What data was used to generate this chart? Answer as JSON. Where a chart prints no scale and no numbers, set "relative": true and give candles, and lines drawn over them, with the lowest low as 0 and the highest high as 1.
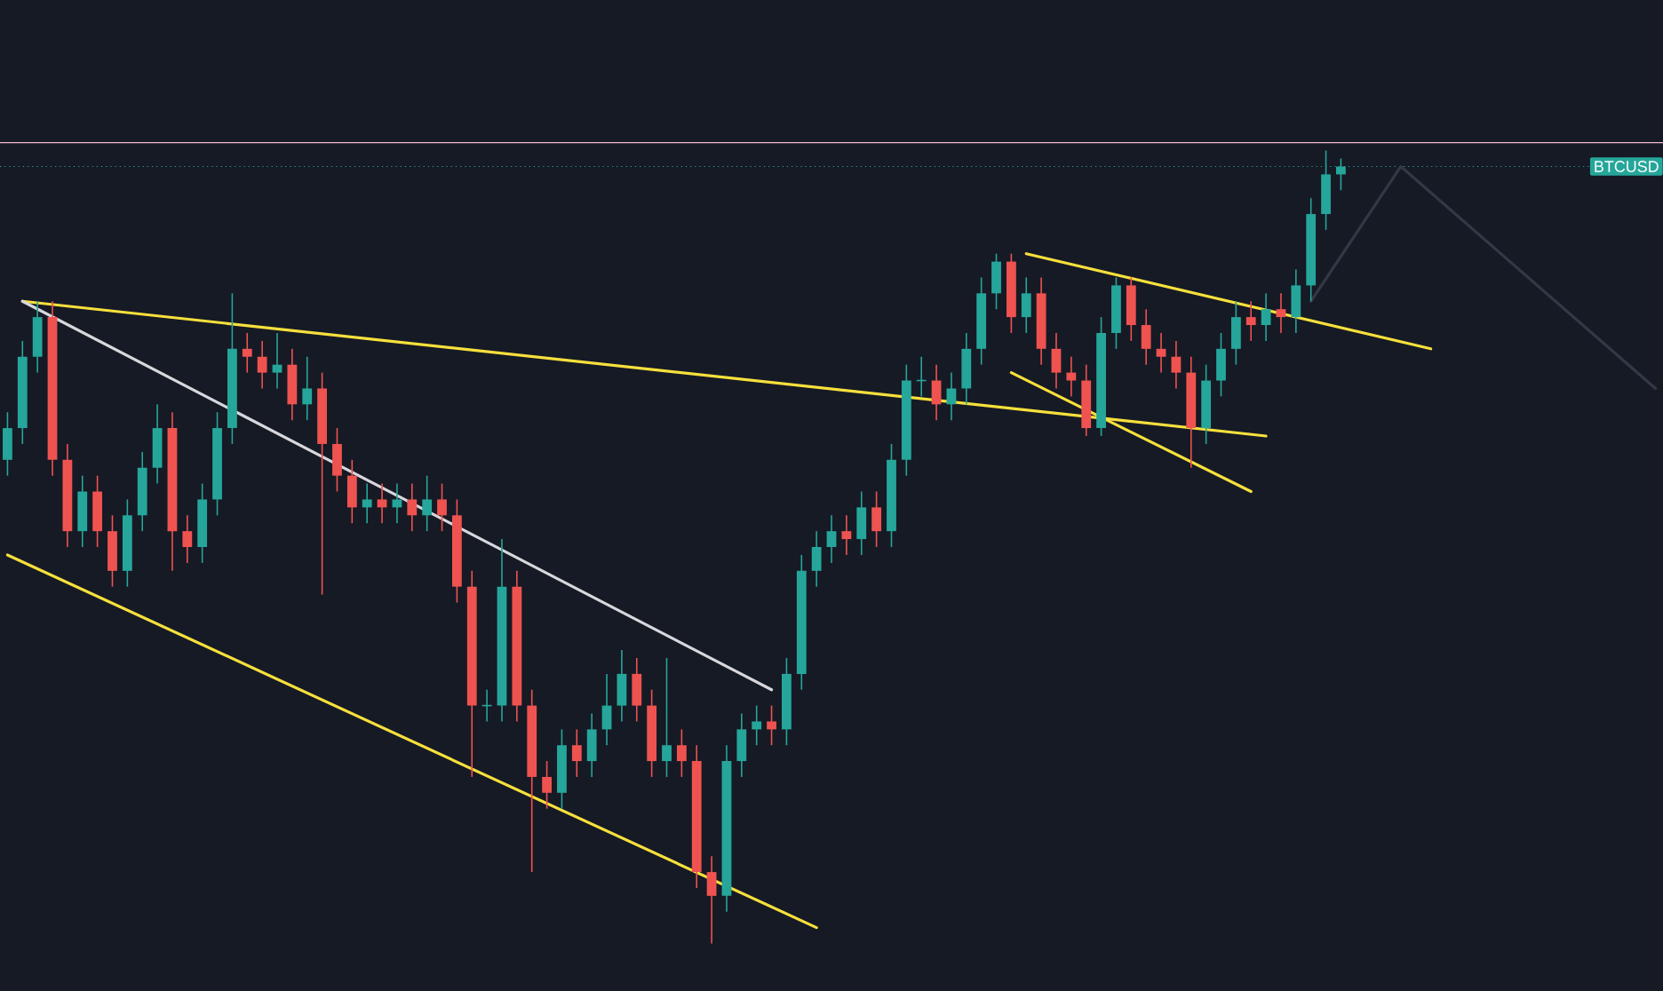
{
  "chart_data": {
    "type": "candlestick",
    "relative": true,
    "tick_labels": false,
    "categories": [
      null,
      null,
      null,
      null,
      null,
      null,
      null,
      null,
      null,
      null,
      null,
      null,
      null,
      null,
      null,
      null,
      null,
      null,
      null,
      null,
      null,
      null,
      null,
      null,
      null,
      null,
      null,
      null,
      null,
      null,
      null,
      null,
      null,
      null,
      null,
      null,
      null,
      null,
      null,
      null,
      null,
      null,
      null,
      null,
      null,
      null,
      null,
      null,
      null,
      null,
      null,
      null,
      null,
      null,
      null,
      null,
      null,
      null,
      null,
      null,
      null,
      null,
      null,
      null,
      null,
      null,
      null,
      null,
      null,
      null,
      null,
      null,
      null,
      null,
      null,
      null,
      null,
      null,
      null,
      null,
      null,
      null,
      null,
      null,
      null,
      null,
      null,
      null,
      null,
      null,
      null,
      null,
      null,
      null,
      null,
      null,
      null,
      null,
      null,
      null,
      null,
      null,
      null,
      null,
      null,
      null,
      null,
      null,
      null,
      null,
      null
    ],
    "ohlc": [
      [
        0.61,
        0.67,
        0.59,
        0.65
      ],
      [
        0.65,
        0.76,
        0.63,
        0.74
      ],
      [
        0.74,
        0.81,
        0.72,
        0.79
      ],
      [
        0.79,
        0.81,
        0.59,
        0.61
      ],
      [
        0.61,
        0.63,
        0.5,
        0.52
      ],
      [
        0.52,
        0.59,
        0.5,
        0.57
      ],
      [
        0.57,
        0.59,
        0.5,
        0.52
      ],
      [
        0.52,
        0.54,
        0.45,
        0.47
      ],
      [
        0.47,
        0.56,
        0.45,
        0.54
      ],
      [
        0.54,
        0.62,
        0.52,
        0.6
      ],
      [
        0.6,
        0.68,
        0.58,
        0.65
      ],
      [
        0.65,
        0.67,
        0.47,
        0.52
      ],
      [
        0.52,
        0.54,
        0.48,
        0.5
      ],
      [
        0.5,
        0.58,
        0.48,
        0.56
      ],
      [
        0.56,
        0.67,
        0.54,
        0.65
      ],
      [
        0.65,
        0.82,
        0.63,
        0.75
      ],
      [
        0.75,
        0.77,
        0.72,
        0.74
      ],
      [
        0.74,
        0.76,
        0.7,
        0.72
      ],
      [
        0.72,
        0.77,
        0.7,
        0.73
      ],
      [
        0.73,
        0.75,
        0.66,
        0.68
      ],
      [
        0.68,
        0.74,
        0.66,
        0.7
      ],
      [
        0.7,
        0.72,
        0.44,
        0.63
      ],
      [
        0.63,
        0.65,
        0.57,
        0.59
      ],
      [
        0.59,
        0.61,
        0.53,
        0.55
      ],
      [
        0.55,
        0.58,
        0.53,
        0.56
      ],
      [
        0.56,
        0.58,
        0.53,
        0.55
      ],
      [
        0.55,
        0.58,
        0.53,
        0.56
      ],
      [
        0.56,
        0.58,
        0.52,
        0.54
      ],
      [
        0.54,
        0.59,
        0.52,
        0.56
      ],
      [
        0.56,
        0.58,
        0.52,
        0.54
      ],
      [
        0.54,
        0.56,
        0.43,
        0.45
      ],
      [
        0.45,
        0.47,
        0.21,
        0.3
      ],
      [
        0.3,
        0.32,
        0.28,
        0.3
      ],
      [
        0.3,
        0.51,
        0.28,
        0.45
      ],
      [
        0.45,
        0.47,
        0.28,
        0.3
      ],
      [
        0.3,
        0.32,
        0.09,
        0.21
      ],
      [
        0.21,
        0.23,
        0.17,
        0.19
      ],
      [
        0.19,
        0.27,
        0.17,
        0.25
      ],
      [
        0.25,
        0.27,
        0.21,
        0.23
      ],
      [
        0.23,
        0.29,
        0.21,
        0.27
      ],
      [
        0.27,
        0.34,
        0.25,
        0.3
      ],
      [
        0.3,
        0.37,
        0.28,
        0.34
      ],
      [
        0.34,
        0.36,
        0.28,
        0.3
      ],
      [
        0.3,
        0.32,
        0.21,
        0.23
      ],
      [
        0.23,
        0.36,
        0.21,
        0.25
      ],
      [
        0.25,
        0.27,
        0.21,
        0.23
      ],
      [
        0.23,
        0.25,
        0.07,
        0.09
      ],
      [
        0.09,
        0.11,
        0.0,
        0.06
      ],
      [
        0.06,
        0.25,
        0.04,
        0.23
      ],
      [
        0.23,
        0.29,
        0.21,
        0.27
      ],
      [
        0.27,
        0.3,
        0.25,
        0.28
      ],
      [
        0.28,
        0.3,
        0.25,
        0.27
      ],
      [
        0.27,
        0.36,
        0.25,
        0.34
      ],
      [
        0.34,
        0.49,
        0.32,
        0.47
      ],
      [
        0.47,
        0.52,
        0.45,
        0.5
      ],
      [
        0.5,
        0.54,
        0.48,
        0.52
      ],
      [
        0.52,
        0.54,
        0.49,
        0.51
      ],
      [
        0.51,
        0.57,
        0.49,
        0.55
      ],
      [
        0.55,
        0.57,
        0.5,
        0.52
      ],
      [
        0.52,
        0.63,
        0.5,
        0.61
      ],
      [
        0.61,
        0.73,
        0.59,
        0.71
      ],
      [
        0.71,
        0.74,
        0.69,
        0.71
      ],
      [
        0.71,
        0.73,
        0.66,
        0.68
      ],
      [
        0.68,
        0.72,
        0.66,
        0.7
      ],
      [
        0.7,
        0.77,
        0.68,
        0.75
      ],
      [
        0.75,
        0.84,
        0.73,
        0.82
      ],
      [
        0.82,
        0.87,
        0.8,
        0.86
      ],
      [
        0.86,
        0.87,
        0.77,
        0.79
      ],
      [
        0.79,
        0.84,
        0.77,
        0.82
      ],
      [
        0.82,
        0.84,
        0.73,
        0.75
      ],
      [
        0.75,
        0.77,
        0.7,
        0.72
      ],
      [
        0.72,
        0.74,
        0.69,
        0.71
      ],
      [
        0.71,
        0.73,
        0.64,
        0.65
      ],
      [
        0.65,
        0.79,
        0.64,
        0.77
      ],
      [
        0.77,
        0.84,
        0.75,
        0.83
      ],
      [
        0.83,
        0.84,
        0.76,
        0.78
      ],
      [
        0.78,
        0.8,
        0.73,
        0.75
      ],
      [
        0.75,
        0.77,
        0.72,
        0.74
      ],
      [
        0.74,
        0.76,
        0.7,
        0.72
      ],
      [
        0.72,
        0.74,
        0.6,
        0.65
      ],
      [
        0.65,
        0.73,
        0.63,
        0.71
      ],
      [
        0.71,
        0.77,
        0.69,
        0.75
      ],
      [
        0.75,
        0.81,
        0.73,
        0.79
      ],
      [
        0.79,
        0.81,
        0.76,
        0.78
      ],
      [
        0.78,
        0.82,
        0.76,
        0.8
      ],
      [
        0.8,
        0.82,
        0.77,
        0.79
      ],
      [
        0.79,
        0.85,
        0.77,
        0.83
      ],
      [
        0.83,
        0.94,
        0.81,
        0.92
      ],
      [
        0.92,
        1.0,
        0.9,
        0.97
      ],
      [
        0.97,
        0.99,
        0.95,
        0.98
      ],
      null,
      null,
      null,
      null,
      null,
      null,
      null,
      null,
      null,
      null,
      null,
      null,
      null,
      null,
      null,
      null,
      null,
      null,
      null,
      null,
      null
    ],
    "colors": [
      "#26a69a",
      "#26a69a",
      "#26a69a",
      "#ef5350",
      "#ef5350",
      "#26a69a",
      "#ef5350",
      "#ef5350",
      "#26a69a",
      "#26a69a",
      "#26a69a",
      "#ef5350",
      "#ef5350",
      "#26a69a",
      "#26a69a",
      "#26a69a",
      "#ef5350",
      "#ef5350",
      "#26a69a",
      "#ef5350",
      "#26a69a",
      "#ef5350",
      "#ef5350",
      "#ef5350",
      "#26a69a",
      "#ef5350",
      "#26a69a",
      "#ef5350",
      "#26a69a",
      "#ef5350",
      "#ef5350",
      "#ef5350",
      "#26a69a",
      "#26a69a",
      "#ef5350",
      "#ef5350",
      "#ef5350",
      "#26a69a",
      "#ef5350",
      "#26a69a",
      "#26a69a",
      "#26a69a",
      "#ef5350",
      "#ef5350",
      "#26a69a",
      "#ef5350",
      "#ef5350",
      "#ef5350",
      "#26a69a",
      "#26a69a",
      "#26a69a",
      "#ef5350",
      "#26a69a",
      "#26a69a",
      "#26a69a",
      "#26a69a",
      "#ef5350",
      "#26a69a",
      "#ef5350",
      "#26a69a",
      "#26a69a",
      "#26a69a",
      "#ef5350",
      "#26a69a",
      "#26a69a",
      "#26a69a",
      "#26a69a",
      "#ef5350",
      "#26a69a",
      "#ef5350",
      "#ef5350",
      "#ef5350",
      "#ef5350",
      "#26a69a",
      "#26a69a",
      "#ef5350",
      "#ef5350",
      "#ef5350",
      "#ef5350",
      "#ef5350",
      "#26a69a",
      "#26a69a",
      "#26a69a",
      "#ef5350",
      "#26a69a",
      "#ef5350",
      "#26a69a",
      "#26a69a",
      "#26a69a",
      "#26a69a",
      null,
      null,
      null,
      null,
      null,
      null,
      null,
      null,
      null,
      null,
      null,
      null,
      null,
      null,
      null,
      null,
      null,
      null,
      null,
      null,
      null
    ],
    "series": [
      {
        "type": "line",
        "color": "#f7e03c",
        "values": [
          null,
          0.81,
          null,
          null,
          null,
          null,
          null,
          null,
          null,
          null,
          null,
          null,
          null,
          null,
          null,
          null,
          null,
          null,
          null,
          null,
          null,
          null,
          null,
          null,
          null,
          null,
          null,
          null,
          null,
          null,
          null,
          null,
          null,
          null,
          null,
          null,
          null,
          null,
          null,
          null,
          null,
          null,
          null,
          null,
          null,
          null,
          null,
          null,
          null,
          null,
          null,
          null,
          null,
          null,
          null,
          null,
          null,
          null,
          null,
          null,
          null,
          null,
          null,
          null,
          null,
          null,
          null,
          null,
          null,
          null,
          null,
          null,
          null,
          null,
          null,
          null,
          null,
          null,
          null,
          null,
          null,
          null,
          null,
          null,
          0.64,
          null,
          null,
          null,
          null,
          null,
          null,
          null,
          null,
          null,
          null,
          null,
          null,
          null,
          null,
          null,
          null,
          null,
          null,
          null,
          null,
          null,
          null,
          null,
          null,
          null,
          null
        ]
      },
      {
        "type": "line",
        "color": "#f7e03c",
        "values": [
          0.49,
          null,
          null,
          null,
          null,
          null,
          null,
          null,
          null,
          null,
          null,
          null,
          null,
          null,
          null,
          null,
          null,
          null,
          null,
          null,
          null,
          null,
          null,
          null,
          null,
          null,
          null,
          null,
          null,
          null,
          null,
          null,
          null,
          null,
          null,
          null,
          null,
          null,
          null,
          null,
          null,
          null,
          null,
          null,
          null,
          null,
          null,
          null,
          null,
          null,
          null,
          null,
          null,
          null,
          0.02,
          null,
          null,
          null,
          null,
          null,
          null,
          null,
          null,
          null,
          null,
          null,
          null,
          null,
          null,
          null,
          null,
          null,
          null,
          null,
          null,
          null,
          null,
          null,
          null,
          null,
          null,
          null,
          null,
          null,
          null,
          null,
          null,
          null,
          null,
          null,
          null,
          null,
          null,
          null,
          null,
          null,
          null,
          null,
          null,
          null,
          null,
          null,
          null,
          null,
          null,
          null,
          null,
          null,
          null,
          null,
          null
        ]
      },
      {
        "type": "line",
        "color": "#f7e03c",
        "values": [
          null,
          null,
          null,
          null,
          null,
          null,
          null,
          null,
          null,
          null,
          null,
          null,
          null,
          null,
          null,
          null,
          null,
          null,
          null,
          null,
          null,
          null,
          null,
          null,
          null,
          null,
          null,
          null,
          null,
          null,
          null,
          null,
          null,
          null,
          null,
          null,
          null,
          null,
          null,
          null,
          null,
          null,
          null,
          null,
          null,
          null,
          null,
          null,
          null,
          null,
          null,
          null,
          null,
          null,
          null,
          null,
          null,
          null,
          null,
          null,
          null,
          null,
          null,
          null,
          null,
          null,
          null,
          null,
          0.87,
          null,
          null,
          null,
          null,
          null,
          null,
          null,
          null,
          null,
          null,
          null,
          null,
          null,
          null,
          null,
          null,
          null,
          null,
          null,
          null,
          null,
          null,
          null,
          null,
          null,
          null,
          0.75,
          null,
          null,
          null,
          null,
          null,
          null,
          null,
          null,
          null,
          null,
          null,
          null,
          null,
          null,
          null
        ]
      },
      {
        "type": "line",
        "color": "#f7e03c",
        "values": [
          null,
          null,
          null,
          null,
          null,
          null,
          null,
          null,
          null,
          null,
          null,
          null,
          null,
          null,
          null,
          null,
          null,
          null,
          null,
          null,
          null,
          null,
          null,
          null,
          null,
          null,
          null,
          null,
          null,
          null,
          null,
          null,
          null,
          null,
          null,
          null,
          null,
          null,
          null,
          null,
          null,
          null,
          null,
          null,
          null,
          null,
          null,
          null,
          null,
          null,
          null,
          null,
          null,
          null,
          null,
          null,
          null,
          null,
          null,
          null,
          null,
          null,
          null,
          null,
          null,
          null,
          null,
          0.72,
          null,
          null,
          null,
          null,
          null,
          null,
          null,
          null,
          null,
          null,
          null,
          null,
          null,
          null,
          null,
          0.57,
          null,
          null,
          null,
          null,
          null,
          null,
          null,
          null,
          null,
          null,
          null,
          null,
          null,
          null,
          null,
          null,
          null,
          null,
          null,
          null,
          null,
          null,
          null,
          null,
          null,
          null,
          null
        ]
      },
      {
        "type": "line",
        "color": "#d8d8dc",
        "values": [
          null,
          0.81,
          null,
          null,
          null,
          null,
          null,
          null,
          null,
          null,
          null,
          null,
          null,
          null,
          null,
          null,
          null,
          null,
          null,
          null,
          null,
          null,
          null,
          null,
          null,
          null,
          null,
          null,
          null,
          null,
          null,
          null,
          null,
          null,
          null,
          null,
          null,
          null,
          null,
          null,
          null,
          null,
          null,
          null,
          null,
          null,
          null,
          null,
          null,
          null,
          null,
          0.32,
          null,
          null,
          null,
          null,
          null,
          null,
          null,
          null,
          null,
          null,
          null,
          null,
          null,
          null,
          null,
          null,
          null,
          null,
          null,
          null,
          null,
          null,
          null,
          null,
          null,
          null,
          null,
          null,
          null,
          null,
          null,
          null,
          null,
          null,
          null,
          null,
          null,
          null,
          null,
          null,
          null,
          null,
          null,
          null,
          null,
          null,
          null,
          null,
          null,
          null,
          null,
          null,
          null,
          null,
          null,
          null,
          null,
          null,
          null
        ]
      },
      {
        "type": "line",
        "color": "#343845",
        "values": [
          null,
          null,
          null,
          null,
          null,
          null,
          null,
          null,
          null,
          null,
          null,
          null,
          null,
          null,
          null,
          null,
          null,
          null,
          null,
          null,
          null,
          null,
          null,
          null,
          null,
          null,
          null,
          null,
          null,
          null,
          null,
          null,
          null,
          null,
          null,
          null,
          null,
          null,
          null,
          null,
          null,
          null,
          null,
          null,
          null,
          null,
          null,
          null,
          null,
          null,
          null,
          null,
          null,
          null,
          null,
          null,
          null,
          null,
          null,
          null,
          null,
          null,
          null,
          null,
          null,
          null,
          null,
          null,
          null,
          null,
          null,
          null,
          null,
          null,
          null,
          null,
          null,
          null,
          null,
          null,
          null,
          null,
          null,
          null,
          null,
          null,
          null,
          0.81,
          null,
          null,
          null,
          null,
          null,
          0.98,
          null,
          null,
          null,
          null,
          null,
          null,
          null,
          null,
          null,
          null,
          null,
          null,
          null,
          null,
          null,
          null,
          0.7
        ]
      }
    ],
    "ref_lines": [
      {
        "axis": "y",
        "value": 1.01,
        "color": "#f0b7d0",
        "line_style": "solid"
      },
      {
        "axis": "y",
        "value": 0.98,
        "color": "#26a69a",
        "line_style": "dotted",
        "label": "BTCUSD"
      }
    ]
  }
}
